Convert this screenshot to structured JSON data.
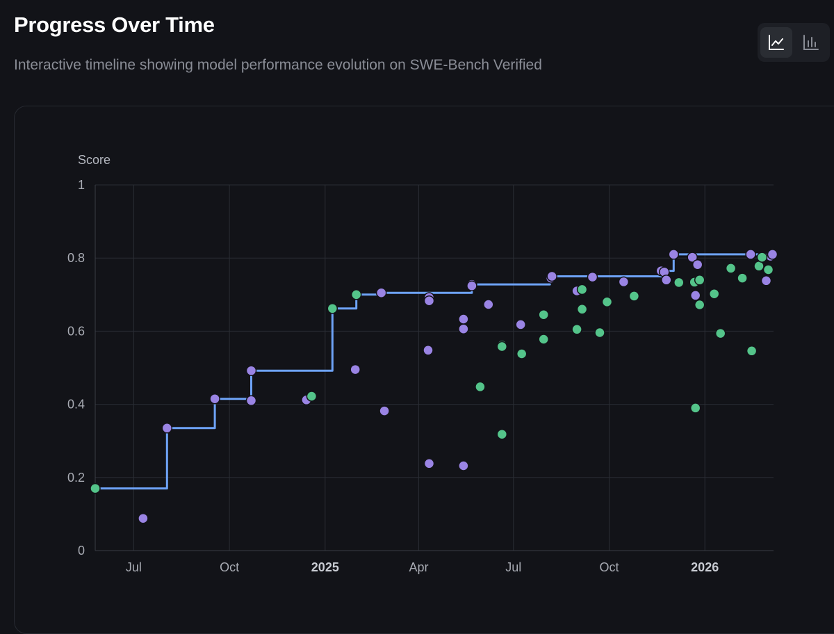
{
  "header": {
    "title": "Progress Over Time",
    "subtitle": "Interactive timeline showing model performance evolution on SWE-Bench Verified"
  },
  "view_toggle": {
    "options": [
      {
        "name": "line-chart-view",
        "icon": "line-chart-icon",
        "active": true
      },
      {
        "name": "bar-chart-view",
        "icon": "bar-chart-icon",
        "active": false
      }
    ]
  },
  "colors": {
    "background": "#121318",
    "frontier_line": "#6ea3f7",
    "purple_points": "#9a84e4",
    "green_points": "#54c48a",
    "grid": "#2a2d34"
  },
  "chart_data": {
    "type": "scatter",
    "ylabel": "Score",
    "ylim": [
      0,
      1
    ],
    "yticks": [
      "0",
      "0.2",
      "0.4",
      "0.6",
      "0.8",
      "1"
    ],
    "xlim": [
      "2024-05-25",
      "2026-03-08"
    ],
    "xticks": [
      {
        "date": "2024-07-01",
        "label": "Jul",
        "bold": false
      },
      {
        "date": "2024-10-01",
        "label": "Oct",
        "bold": false
      },
      {
        "date": "2025-01-01",
        "label": "2025",
        "bold": true
      },
      {
        "date": "2025-04-01",
        "label": "Apr",
        "bold": false
      },
      {
        "date": "2025-07-01",
        "label": "Jul",
        "bold": false
      },
      {
        "date": "2025-10-01",
        "label": "Oct",
        "bold": false
      },
      {
        "date": "2026-01-01",
        "label": "2026",
        "bold": true
      }
    ],
    "grid": true,
    "frontier": [
      {
        "x": "2024-05-25",
        "y": 0.17
      },
      {
        "x": "2024-08-02",
        "y": 0.17
      },
      {
        "x": "2024-08-02",
        "y": 0.335
      },
      {
        "x": "2024-09-17",
        "y": 0.335
      },
      {
        "x": "2024-09-17",
        "y": 0.415
      },
      {
        "x": "2024-10-22",
        "y": 0.415
      },
      {
        "x": "2024-10-22",
        "y": 0.492
      },
      {
        "x": "2025-01-08",
        "y": 0.492
      },
      {
        "x": "2025-01-08",
        "y": 0.662
      },
      {
        "x": "2025-01-31",
        "y": 0.662
      },
      {
        "x": "2025-01-31",
        "y": 0.7
      },
      {
        "x": "2025-02-24",
        "y": 0.7
      },
      {
        "x": "2025-02-24",
        "y": 0.705
      },
      {
        "x": "2025-05-22",
        "y": 0.705
      },
      {
        "x": "2025-05-22",
        "y": 0.728
      },
      {
        "x": "2025-08-05",
        "y": 0.728
      },
      {
        "x": "2025-08-05",
        "y": 0.75
      },
      {
        "x": "2025-11-24",
        "y": 0.75
      },
      {
        "x": "2025-11-24",
        "y": 0.765
      },
      {
        "x": "2025-12-02",
        "y": 0.765
      },
      {
        "x": "2025-12-02",
        "y": 0.81
      },
      {
        "x": "2026-03-08",
        "y": 0.81
      }
    ],
    "series": [
      {
        "color": "#9a84e4",
        "points": [
          {
            "x": "2024-07-10",
            "y": 0.088
          },
          {
            "x": "2024-08-02",
            "y": 0.335
          },
          {
            "x": "2024-09-17",
            "y": 0.415
          },
          {
            "x": "2024-10-22",
            "y": 0.492
          },
          {
            "x": "2024-10-22",
            "y": 0.41
          },
          {
            "x": "2024-12-14",
            "y": 0.412
          },
          {
            "x": "2025-01-30",
            "y": 0.495
          },
          {
            "x": "2025-02-24",
            "y": 0.705
          },
          {
            "x": "2025-02-27",
            "y": 0.382
          },
          {
            "x": "2025-04-10",
            "y": 0.548
          },
          {
            "x": "2025-04-11",
            "y": 0.692
          },
          {
            "x": "2025-04-11",
            "y": 0.683
          },
          {
            "x": "2025-04-11",
            "y": 0.238
          },
          {
            "x": "2025-05-14",
            "y": 0.633
          },
          {
            "x": "2025-05-14",
            "y": 0.606
          },
          {
            "x": "2025-05-14",
            "y": 0.232
          },
          {
            "x": "2025-05-22",
            "y": 0.728
          },
          {
            "x": "2025-05-22",
            "y": 0.724
          },
          {
            "x": "2025-06-07",
            "y": 0.673
          },
          {
            "x": "2025-07-08",
            "y": 0.618
          },
          {
            "x": "2025-08-06",
            "y": 0.745
          },
          {
            "x": "2025-08-07",
            "y": 0.75
          },
          {
            "x": "2025-08-31",
            "y": 0.71
          },
          {
            "x": "2025-09-15",
            "y": 0.748
          },
          {
            "x": "2025-10-15",
            "y": 0.735
          },
          {
            "x": "2025-11-20",
            "y": 0.765
          },
          {
            "x": "2025-11-23",
            "y": 0.762
          },
          {
            "x": "2025-11-25",
            "y": 0.74
          },
          {
            "x": "2025-12-02",
            "y": 0.81
          },
          {
            "x": "2025-12-20",
            "y": 0.802
          },
          {
            "x": "2025-12-23",
            "y": 0.698
          },
          {
            "x": "2025-12-25",
            "y": 0.782
          },
          {
            "x": "2026-02-14",
            "y": 0.81
          },
          {
            "x": "2026-03-01",
            "y": 0.738
          },
          {
            "x": "2026-03-05",
            "y": 0.805
          },
          {
            "x": "2026-03-07",
            "y": 0.81
          }
        ]
      },
      {
        "color": "#54c48a",
        "points": [
          {
            "x": "2024-05-25",
            "y": 0.17
          },
          {
            "x": "2024-12-19",
            "y": 0.422
          },
          {
            "x": "2025-01-08",
            "y": 0.662
          },
          {
            "x": "2025-01-31",
            "y": 0.7
          },
          {
            "x": "2025-05-30",
            "y": 0.448
          },
          {
            "x": "2025-06-20",
            "y": 0.562
          },
          {
            "x": "2025-06-20",
            "y": 0.558
          },
          {
            "x": "2025-06-20",
            "y": 0.318
          },
          {
            "x": "2025-07-09",
            "y": 0.538
          },
          {
            "x": "2025-07-30",
            "y": 0.645
          },
          {
            "x": "2025-07-30",
            "y": 0.578
          },
          {
            "x": "2025-08-31",
            "y": 0.605
          },
          {
            "x": "2025-09-05",
            "y": 0.714
          },
          {
            "x": "2025-09-05",
            "y": 0.66
          },
          {
            "x": "2025-09-22",
            "y": 0.596
          },
          {
            "x": "2025-09-29",
            "y": 0.68
          },
          {
            "x": "2025-10-25",
            "y": 0.696
          },
          {
            "x": "2025-12-07",
            "y": 0.733
          },
          {
            "x": "2025-12-22",
            "y": 0.734
          },
          {
            "x": "2025-12-27",
            "y": 0.74
          },
          {
            "x": "2025-12-27",
            "y": 0.672
          },
          {
            "x": "2025-12-23",
            "y": 0.39
          },
          {
            "x": "2026-01-10",
            "y": 0.702
          },
          {
            "x": "2026-01-16",
            "y": 0.594
          },
          {
            "x": "2026-01-26",
            "y": 0.772
          },
          {
            "x": "2026-02-06",
            "y": 0.745
          },
          {
            "x": "2026-02-15",
            "y": 0.546
          },
          {
            "x": "2026-02-22",
            "y": 0.778
          },
          {
            "x": "2026-02-25",
            "y": 0.802
          },
          {
            "x": "2026-03-03",
            "y": 0.768
          }
        ]
      }
    ]
  }
}
